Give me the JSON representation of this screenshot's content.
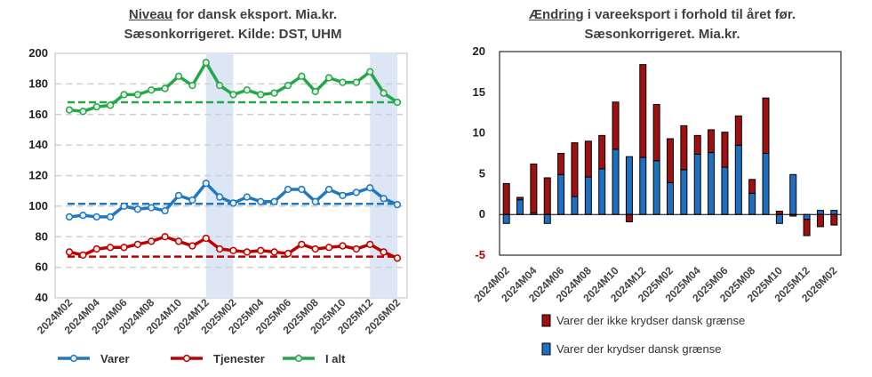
{
  "chart_data": [
    {
      "type": "line",
      "title_underlined": "Niveau",
      "title_rest": " for dansk eksport. Mia.kr.",
      "subtitle": "Sæsonkorrigeret. Kilde: DST, UHM",
      "ylim": [
        40,
        200
      ],
      "yticks": [
        "40",
        "60",
        "80",
        "100",
        "120",
        "140",
        "160",
        "180",
        "200"
      ],
      "x": [
        "2024M02",
        "2024M03",
        "2024M04",
        "2024M05",
        "2024M06",
        "2024M07",
        "2024M08",
        "2024M09",
        "2024M10",
        "2024M11",
        "2024M12",
        "2025M01",
        "2025M02",
        "2025M03",
        "2025M04",
        "2025M05",
        "2025M06",
        "2025M07",
        "2025M08",
        "2025M09",
        "2025M10",
        "2025M11",
        "2025M12",
        "2026M01",
        "2026M02"
      ],
      "xtick_labels": [
        "2024M02",
        "2024M04",
        "2024M06",
        "2024M08",
        "2024M10",
        "2024M12",
        "2025M02",
        "2025M04",
        "2025M06",
        "2025M08",
        "2025M10",
        "2025M12",
        "2026M02"
      ],
      "grid": true,
      "shaded_ranges": [
        [
          "2024M12",
          "2025M02"
        ],
        [
          "2025M12",
          "2026M02"
        ]
      ],
      "series": [
        {
          "name": "Varer",
          "color": "#1f78c1",
          "values": [
            93,
            94,
            93,
            93,
            100,
            98,
            99,
            97,
            107,
            104,
            115,
            106,
            102,
            106,
            103,
            103,
            111,
            111,
            103,
            111,
            107,
            109,
            112,
            105,
            101
          ],
          "average": 101.5
        },
        {
          "name": "Tjenester",
          "color": "#c00000",
          "values": [
            70,
            68,
            72,
            73,
            73,
            75,
            77,
            80,
            77,
            74,
            79,
            72,
            71,
            70,
            71,
            70,
            69,
            75,
            72,
            73,
            74,
            72,
            75,
            70,
            66
          ],
          "average": 67
        },
        {
          "name": "I alt",
          "color": "#22a847",
          "values": [
            163,
            162,
            165,
            166,
            173,
            173,
            176,
            177,
            185,
            179,
            194,
            179,
            173,
            176,
            173,
            174,
            179,
            185,
            175,
            184,
            181,
            181,
            188,
            174,
            168
          ],
          "average": 168
        }
      ]
    },
    {
      "type": "bar",
      "stacked": true,
      "title_underlined": "Ændring",
      "title_rest": " i vareeksport i forhold til året før.",
      "subtitle": "Sæsonkorrigeret. Mia.kr.",
      "ylim": [
        -5,
        20
      ],
      "yticks": [
        "-5",
        "0",
        "5",
        "10",
        "15",
        "20"
      ],
      "categories": [
        "2024M02",
        "2024M03",
        "2024M04",
        "2024M05",
        "2024M06",
        "2024M07",
        "2024M08",
        "2024M09",
        "2024M10",
        "2024M11",
        "2024M12",
        "2025M01",
        "2025M02",
        "2025M03",
        "2025M04",
        "2025M05",
        "2025M06",
        "2025M07",
        "2025M08",
        "2025M09",
        "2025M10",
        "2025M11",
        "2025M12",
        "2026M01",
        "2026M02"
      ],
      "xtick_labels": [
        "2024M02",
        "2024M04",
        "2024M06",
        "2024M08",
        "2024M10",
        "2024M12",
        "2025M02",
        "2025M04",
        "2025M06",
        "2025M08",
        "2025M10",
        "2025M12",
        "2026M02"
      ],
      "series": [
        {
          "name": "Varer der ikke krydser dansk grænse",
          "color": "#a01010",
          "values": [
            3.8,
            0.3,
            6.0,
            4.5,
            2.6,
            6.6,
            4.4,
            4.1,
            5.8,
            -0.9,
            11.4,
            6.9,
            5.4,
            5.4,
            2.3,
            2.8,
            4.3,
            3.6,
            1.7,
            6.8,
            0.4,
            -0.2,
            -2.0,
            -1.5,
            -1.3
          ]
        },
        {
          "name": "Varer der krydser dansk grænse",
          "color": "#1f6fc0",
          "values": [
            -1.1,
            1.8,
            0.2,
            -1.1,
            4.9,
            2.2,
            4.6,
            5.6,
            8.0,
            7.1,
            7.0,
            6.6,
            3.9,
            5.5,
            7.4,
            7.6,
            5.8,
            8.5,
            2.6,
            7.5,
            -1.1,
            4.9,
            -0.6,
            0.5,
            0.5
          ]
        }
      ]
    }
  ]
}
